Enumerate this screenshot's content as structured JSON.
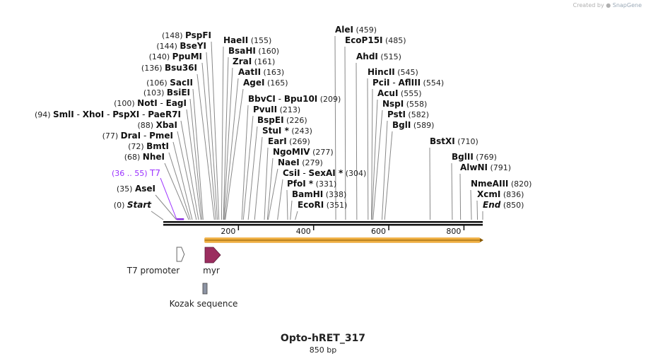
{
  "watermark": {
    "prefix": "Created by",
    "brand": "SnapGene"
  },
  "map": {
    "title": "Opto-hRET_317",
    "length_text": "850 bp",
    "total_bp": 850,
    "ticks": [
      {
        "pos": 200,
        "label": "200"
      },
      {
        "pos": 400,
        "label": "400"
      },
      {
        "pos": 600,
        "label": "600"
      },
      {
        "pos": 800,
        "label": "800"
      }
    ],
    "labels": [
      {
        "id": "start",
        "names": [
          "Start"
        ],
        "num": "(0)",
        "pos": 0,
        "italic": true
      },
      {
        "id": "asei",
        "names": [
          "AseI"
        ],
        "num": "(35)",
        "pos": 35
      },
      {
        "id": "t7-primer",
        "names": [
          "T7"
        ],
        "num": "(36 .. 55)",
        "pos": 36,
        "primer": true
      },
      {
        "id": "nhei",
        "names": [
          "NheI"
        ],
        "num": "(68)",
        "pos": 68
      },
      {
        "id": "bmti",
        "names": [
          "BmtI"
        ],
        "num": "(72)",
        "pos": 72
      },
      {
        "id": "drai",
        "names": [
          "DraI",
          "PmeI"
        ],
        "num": "(77)",
        "pos": 77
      },
      {
        "id": "xbai",
        "names": [
          "XbaI"
        ],
        "num": "(88)",
        "pos": 88
      },
      {
        "id": "smli",
        "names": [
          "SmlI",
          "XhoI",
          "PspXI",
          "PaeR7I"
        ],
        "num": "(94)",
        "pos": 94
      },
      {
        "id": "noti",
        "names": [
          "NotI",
          "EagI"
        ],
        "num": "(100)",
        "pos": 100
      },
      {
        "id": "bsiei",
        "names": [
          "BsiEI"
        ],
        "num": "(103)",
        "pos": 103
      },
      {
        "id": "sacii",
        "names": [
          "SacII"
        ],
        "num": "(106)",
        "pos": 106
      },
      {
        "id": "bsu36i",
        "names": [
          "Bsu36I"
        ],
        "num": "(136)",
        "pos": 136
      },
      {
        "id": "ppumi",
        "names": [
          "PpuMI"
        ],
        "num": "(140)",
        "pos": 140
      },
      {
        "id": "bseyi",
        "names": [
          "BseYI"
        ],
        "num": "(144)",
        "pos": 144
      },
      {
        "id": "pspfi",
        "names": [
          "PspFI"
        ],
        "num": "(148)",
        "pos": 148
      },
      {
        "id": "haeii",
        "names": [
          "HaeII"
        ],
        "num": "(155)",
        "pos": 155
      },
      {
        "id": "bsahi",
        "names": [
          "BsaHI"
        ],
        "num": "(160)",
        "pos": 160
      },
      {
        "id": "zrai",
        "names": [
          "ZraI"
        ],
        "num": "(161)",
        "pos": 161
      },
      {
        "id": "aatii",
        "names": [
          "AatII"
        ],
        "num": "(163)",
        "pos": 163
      },
      {
        "id": "agei",
        "names": [
          "AgeI"
        ],
        "num": "(165)",
        "pos": 165
      },
      {
        "id": "bbvci",
        "names": [
          "BbvCI",
          "Bpu10I"
        ],
        "num": "(209)",
        "pos": 209
      },
      {
        "id": "pvuii",
        "names": [
          "PvuII"
        ],
        "num": "(213)",
        "pos": 213
      },
      {
        "id": "bspei",
        "names": [
          "BspEI"
        ],
        "num": "(226)",
        "pos": 226
      },
      {
        "id": "stui",
        "names": [
          "StuI *"
        ],
        "num": "(243)",
        "pos": 243
      },
      {
        "id": "eari",
        "names": [
          "EarI"
        ],
        "num": "(269)",
        "pos": 269
      },
      {
        "id": "ngomiv",
        "names": [
          "NgoMIV"
        ],
        "num": "(277)",
        "pos": 277
      },
      {
        "id": "naei",
        "names": [
          "NaeI"
        ],
        "num": "(279)",
        "pos": 279
      },
      {
        "id": "csii",
        "names": [
          "CsiI",
          "SexAI *"
        ],
        "num": "(304)",
        "pos": 304
      },
      {
        "id": "pfoi",
        "names": [
          "PfoI *"
        ],
        "num": "(331)",
        "pos": 331
      },
      {
        "id": "bamhi",
        "names": [
          "BamHI"
        ],
        "num": "(338)",
        "pos": 338
      },
      {
        "id": "ecori",
        "names": [
          "EcoRI"
        ],
        "num": "(351)",
        "pos": 351
      },
      {
        "id": "alei",
        "names": [
          "AleI"
        ],
        "num": "(459)",
        "pos": 459
      },
      {
        "id": "ecop15i",
        "names": [
          "EcoP15I"
        ],
        "num": "(485)",
        "pos": 485
      },
      {
        "id": "ahdi",
        "names": [
          "AhdI"
        ],
        "num": "(515)",
        "pos": 515
      },
      {
        "id": "hincii",
        "names": [
          "HincII"
        ],
        "num": "(545)",
        "pos": 545
      },
      {
        "id": "pcii",
        "names": [
          "PciI",
          "AflIII"
        ],
        "num": "(554)",
        "pos": 554
      },
      {
        "id": "acui",
        "names": [
          "AcuI"
        ],
        "num": "(555)",
        "pos": 555
      },
      {
        "id": "nspi",
        "names": [
          "NspI"
        ],
        "num": "(558)",
        "pos": 558
      },
      {
        "id": "psti",
        "names": [
          "PstI"
        ],
        "num": "(582)",
        "pos": 582
      },
      {
        "id": "bgli",
        "names": [
          "BglI"
        ],
        "num": "(589)",
        "pos": 589
      },
      {
        "id": "bstxi",
        "names": [
          "BstXI"
        ],
        "num": "(710)",
        "pos": 710
      },
      {
        "id": "bglii",
        "names": [
          "BglII"
        ],
        "num": "(769)",
        "pos": 769
      },
      {
        "id": "alwni",
        "names": [
          "AlwNI"
        ],
        "num": "(791)",
        "pos": 791
      },
      {
        "id": "nmeaiii",
        "names": [
          "NmeAIII"
        ],
        "num": "(820)",
        "pos": 820
      },
      {
        "id": "xcmi",
        "names": [
          "XcmI"
        ],
        "num": "(836)",
        "pos": 836
      },
      {
        "id": "end",
        "names": [
          "End"
        ],
        "num": "(850)",
        "pos": 850,
        "italic": true
      }
    ],
    "features": [
      {
        "id": "t7-promoter",
        "name": "T7 promoter",
        "start": 36,
        "end": 54,
        "kind": "promoter",
        "color": "#ffffff"
      },
      {
        "id": "myr",
        "name": "myr",
        "start": 110,
        "end": 152,
        "kind": "cds",
        "color": "#9b2d5f"
      },
      {
        "id": "kozak",
        "name": "Kozak sequence",
        "start": 110,
        "end": 120,
        "kind": "misc",
        "color": "#8c93a3"
      }
    ],
    "orf": {
      "start": 110,
      "end": 850,
      "color": "#f0b042",
      "outline": "#8a5a00"
    },
    "primer": {
      "start": 36,
      "end": 55,
      "color": "#8a2be2"
    }
  }
}
